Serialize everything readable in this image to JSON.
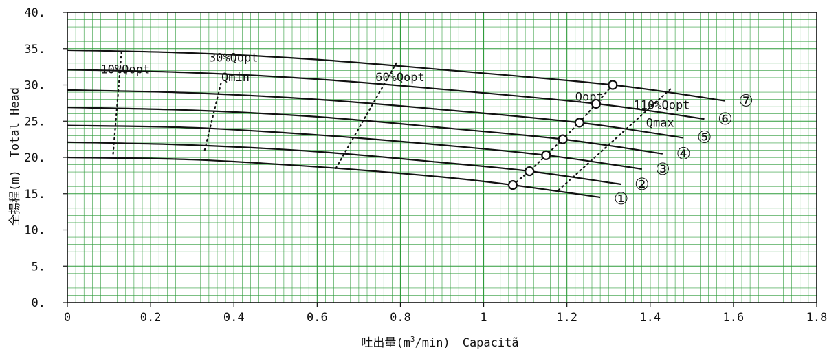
{
  "chart_data": {
    "type": "line",
    "title": "",
    "xlabel": "吐出量(m³/min)　Capacitã",
    "xlabel_parts": {
      "prefix": "吐出量(m",
      "sup": "3",
      "suffix": "/min)",
      "english": "Capacitã"
    },
    "ylabel": "全揚程(m)　Total Head",
    "ylabel_parts": {
      "japanese": "全揚程(m)",
      "english": "Total Head"
    },
    "xlim": [
      0,
      1.8
    ],
    "ylim": [
      0,
      40
    ],
    "x_ticks": [
      {
        "value": 0,
        "label": "0"
      },
      {
        "value": 0.2,
        "label": "0.2"
      },
      {
        "value": 0.4,
        "label": "0.4"
      },
      {
        "value": 0.6,
        "label": "0.6"
      },
      {
        "value": 0.8,
        "label": "0.8"
      },
      {
        "value": 1.0,
        "label": "1"
      },
      {
        "value": 1.2,
        "label": "1.2"
      },
      {
        "value": 1.4,
        "label": "1.4"
      },
      {
        "value": 1.6,
        "label": "1.6"
      },
      {
        "value": 1.8,
        "label": "1.8"
      }
    ],
    "y_ticks": [
      {
        "value": 0,
        "label": "0."
      },
      {
        "value": 5,
        "label": "5."
      },
      {
        "value": 10,
        "label": "10."
      },
      {
        "value": 15,
        "label": "15."
      },
      {
        "value": 20,
        "label": "20."
      },
      {
        "value": 25,
        "label": "25."
      },
      {
        "value": 30,
        "label": "30."
      },
      {
        "value": 35,
        "label": "35."
      },
      {
        "value": 40,
        "label": "40."
      }
    ],
    "grid": true,
    "grid_color": "#2e9b3a",
    "line_color": "#111111",
    "series": [
      {
        "name": "①",
        "points": [
          [
            0,
            20.0
          ],
          [
            0.3,
            19.7
          ],
          [
            0.6,
            18.7
          ],
          [
            0.9,
            17.3
          ],
          [
            1.07,
            16.2
          ],
          [
            1.28,
            14.5
          ]
        ],
        "opt": [
          1.07,
          16.2
        ],
        "label_at": [
          1.33,
          14.3
        ]
      },
      {
        "name": "②",
        "points": [
          [
            0,
            22.1
          ],
          [
            0.3,
            21.7
          ],
          [
            0.6,
            20.8
          ],
          [
            0.9,
            19.3
          ],
          [
            1.11,
            18.1
          ],
          [
            1.33,
            16.3
          ]
        ],
        "opt": [
          1.11,
          18.1
        ],
        "label_at": [
          1.38,
          16.3
        ]
      },
      {
        "name": "③",
        "points": [
          [
            0,
            24.4
          ],
          [
            0.3,
            24.1
          ],
          [
            0.6,
            23.1
          ],
          [
            0.9,
            21.7
          ],
          [
            1.15,
            20.3
          ],
          [
            1.38,
            18.4
          ]
        ],
        "opt": [
          1.15,
          20.3
        ],
        "label_at": [
          1.43,
          18.4
        ]
      },
      {
        "name": "④",
        "points": [
          [
            0,
            26.9
          ],
          [
            0.3,
            26.5
          ],
          [
            0.6,
            25.6
          ],
          [
            0.9,
            24.1
          ],
          [
            1.19,
            22.5
          ],
          [
            1.43,
            20.5
          ]
        ],
        "opt": [
          1.19,
          22.5
        ],
        "label_at": [
          1.48,
          20.5
        ]
      },
      {
        "name": "⑤",
        "points": [
          [
            0,
            29.3
          ],
          [
            0.3,
            28.9
          ],
          [
            0.6,
            28.0
          ],
          [
            0.9,
            26.6
          ],
          [
            1.23,
            24.8
          ],
          [
            1.48,
            22.7
          ]
        ],
        "opt": [
          1.23,
          24.8
        ],
        "label_at": [
          1.53,
          22.8
        ]
      },
      {
        "name": "⑥",
        "points": [
          [
            0,
            32.1
          ],
          [
            0.3,
            31.7
          ],
          [
            0.6,
            30.8
          ],
          [
            0.9,
            29.4
          ],
          [
            1.27,
            27.4
          ],
          [
            1.53,
            25.3
          ]
        ],
        "opt": [
          1.27,
          27.4
        ],
        "label_at": [
          1.58,
          25.3
        ]
      },
      {
        "name": "⑦",
        "points": [
          [
            0,
            34.8
          ],
          [
            0.3,
            34.4
          ],
          [
            0.6,
            33.5
          ],
          [
            0.9,
            32.1
          ],
          [
            1.31,
            30.0
          ],
          [
            1.58,
            27.8
          ]
        ],
        "opt": [
          1.31,
          30.0
        ],
        "label_at": [
          1.63,
          27.8
        ]
      }
    ],
    "reference_lines": [
      {
        "name": "10%Qopt",
        "label": "10%Qopt",
        "points": [
          [
            0.11,
            20.5
          ],
          [
            0.13,
            34.5
          ]
        ],
        "label_at": [
          0.08,
          31.6
        ]
      },
      {
        "name": "30%Qopt Qmin",
        "label": "30%Qopt",
        "label2": "Qmin",
        "points": [
          [
            0.33,
            21.0
          ],
          [
            0.37,
            30.5
          ]
        ],
        "label_at": [
          0.34,
          33.2
        ],
        "label2_at": [
          0.37,
          30.5
        ]
      },
      {
        "name": "60%Qopt",
        "label": "60%Qopt",
        "points": [
          [
            0.645,
            18.5
          ],
          [
            0.79,
            33.0
          ]
        ],
        "label_at": [
          0.74,
          30.5
        ]
      },
      {
        "name": "Qopt",
        "label": "Qopt",
        "points": [
          [
            1.07,
            16.2
          ],
          [
            1.11,
            18.1
          ],
          [
            1.15,
            20.3
          ],
          [
            1.19,
            22.5
          ],
          [
            1.23,
            24.8
          ],
          [
            1.27,
            27.4
          ],
          [
            1.31,
            30.0
          ]
        ],
        "label_at": [
          1.22,
          27.8
        ],
        "dotted": false
      },
      {
        "name": "110%Qopt Qmax",
        "label": "110%Qopt",
        "label2": "Qmax",
        "points": [
          [
            1.18,
            15.5
          ],
          [
            1.45,
            29.5
          ]
        ],
        "label_at": [
          1.36,
          26.7
        ],
        "label2_at": [
          1.39,
          24.2
        ]
      }
    ]
  }
}
